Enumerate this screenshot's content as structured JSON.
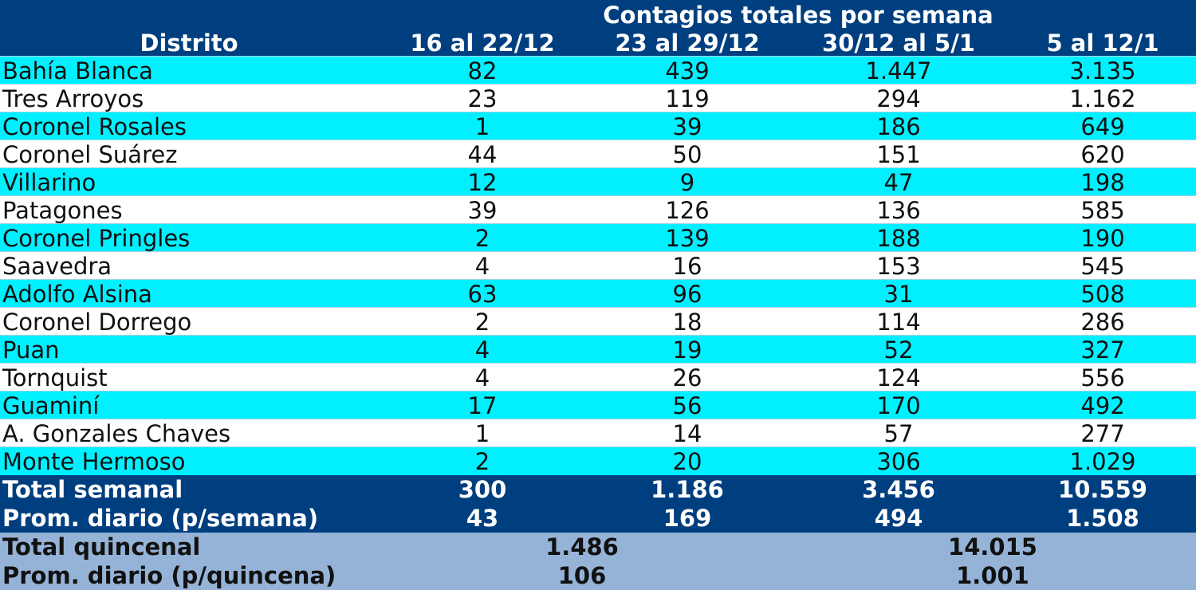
{
  "header": {
    "group_title": "Contagios totales por semana",
    "district_label": "Distrito",
    "weeks": [
      "16 al 22/12",
      "23 al 29/12",
      "30/12 al 5/1",
      "5 al 12/1"
    ]
  },
  "rows": [
    {
      "district": "Bahía Blanca",
      "values": [
        "82",
        "439",
        "1.447",
        "3.135"
      ]
    },
    {
      "district": "Tres Arroyos",
      "values": [
        "23",
        "119",
        "294",
        "1.162"
      ]
    },
    {
      "district": "Coronel Rosales",
      "values": [
        "1",
        "39",
        "186",
        "649"
      ]
    },
    {
      "district": "Coronel Suárez",
      "values": [
        "44",
        "50",
        "151",
        "620"
      ]
    },
    {
      "district": "Villarino",
      "values": [
        "12",
        "9",
        "47",
        "198"
      ]
    },
    {
      "district": "Patagones",
      "values": [
        "39",
        "126",
        "136",
        "585"
      ]
    },
    {
      "district": "Coronel Pringles",
      "values": [
        "2",
        "139",
        "188",
        "190"
      ]
    },
    {
      "district": "Saavedra",
      "values": [
        "4",
        "16",
        "153",
        "545"
      ]
    },
    {
      "district": "Adolfo Alsina",
      "values": [
        "63",
        "96",
        "31",
        "508"
      ]
    },
    {
      "district": "Coronel Dorrego",
      "values": [
        "2",
        "18",
        "114",
        "286"
      ]
    },
    {
      "district": "Puan",
      "values": [
        "4",
        "19",
        "52",
        "327"
      ]
    },
    {
      "district": "Tornquist",
      "values": [
        "4",
        "26",
        "124",
        "556"
      ]
    },
    {
      "district": "Guaminí",
      "values": [
        "17",
        "56",
        "170",
        "492"
      ]
    },
    {
      "district": "A. Gonzales Chaves",
      "values": [
        "1",
        "14",
        "57",
        "277"
      ]
    },
    {
      "district": "Monte Hermoso",
      "values": [
        "2",
        "20",
        "306",
        "1.029"
      ]
    }
  ],
  "totals": {
    "weekly": {
      "label": "Total semanal",
      "values": [
        "300",
        "1.186",
        "3.456",
        "10.559"
      ]
    },
    "daily_week": {
      "label": "Prom. diario (p/semana)",
      "values": [
        "43",
        "169",
        "494",
        "1.508"
      ]
    },
    "biweekly": {
      "label": "Total quincenal",
      "values": [
        "1.486",
        "14.015"
      ]
    },
    "daily_biweek": {
      "label": "Prom. diario (p/quincena)",
      "values": [
        "106",
        "1.001"
      ]
    }
  },
  "colors": {
    "header_bg": "#003f7f",
    "row_alt": "#00f0ff",
    "row_plain": "#ffffff",
    "biweekly_bg": "#95b3d7"
  }
}
